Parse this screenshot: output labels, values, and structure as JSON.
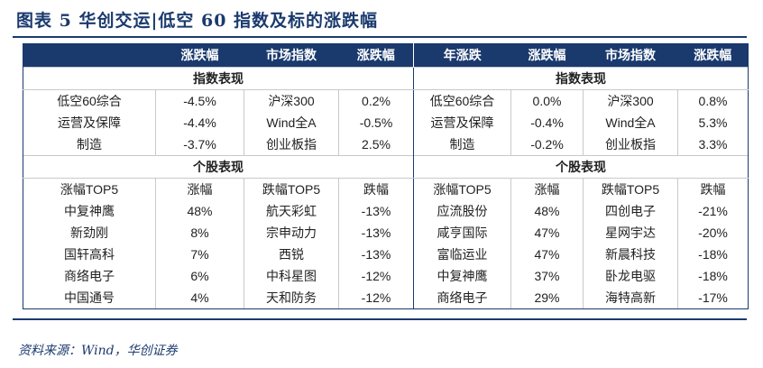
{
  "title": "图表 5   华创交运|低空 60 指数及标的涨跌幅",
  "source": "资料来源：Wind，华创证券",
  "header": {
    "left": [
      "",
      "涨跌幅",
      "市场指数",
      "涨跌幅"
    ],
    "right": [
      "年涨跌",
      "涨跌幅",
      "市场指数",
      "涨跌幅"
    ]
  },
  "sections": {
    "index_perf": "指数表现",
    "stock_perf": "个股表现"
  },
  "index_rows": [
    {
      "l": [
        "低空60综合",
        "-4.5%",
        "沪深300",
        "0.2%"
      ],
      "r": [
        "低空60综合",
        "0.0%",
        "沪深300",
        "0.8%"
      ]
    },
    {
      "l": [
        "运营及保障",
        "-4.4%",
        "Wind全A",
        "-0.5%"
      ],
      "r": [
        "运营及保障",
        "-0.4%",
        "Wind全A",
        "5.3%"
      ]
    },
    {
      "l": [
        "制造",
        "-3.7%",
        "创业板指",
        "2.5%"
      ],
      "r": [
        "制造",
        "-0.2%",
        "创业板指",
        "3.3%"
      ]
    }
  ],
  "stock_header": {
    "l": [
      "涨幅TOP5",
      "涨幅",
      "跌幅TOP5",
      "跌幅"
    ],
    "r": [
      "涨幅TOP5",
      "涨幅",
      "跌幅TOP5",
      "跌幅"
    ]
  },
  "stock_rows": [
    {
      "l": [
        "中复神鹰",
        "48%",
        "航天彩虹",
        "-13%"
      ],
      "r": [
        "应流股份",
        "48%",
        "四创电子",
        "-21%"
      ]
    },
    {
      "l": [
        "新劲刚",
        "8%",
        "宗申动力",
        "-13%"
      ],
      "r": [
        "咸亨国际",
        "47%",
        "星网宇达",
        "-20%"
      ]
    },
    {
      "l": [
        "国轩高科",
        "7%",
        "西锐",
        "-13%"
      ],
      "r": [
        "富临运业",
        "47%",
        "新晨科技",
        "-18%"
      ]
    },
    {
      "l": [
        "商络电子",
        "6%",
        "中科星图",
        "-12%"
      ],
      "r": [
        "中复神鹰",
        "37%",
        "卧龙电驱",
        "-18%"
      ]
    },
    {
      "l": [
        "中国通号",
        "4%",
        "天和防务",
        "-12%"
      ],
      "r": [
        "商络电子",
        "29%",
        "海特高新",
        "-17%"
      ]
    }
  ]
}
